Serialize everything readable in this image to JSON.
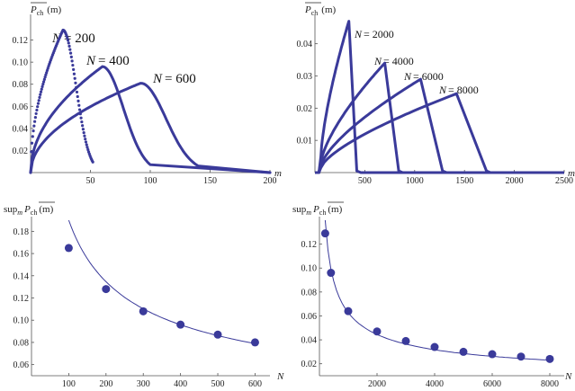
{
  "colors": {
    "series": "#3a3a9a",
    "axis": "#555555",
    "text": "#222222"
  },
  "chart_data": [
    {
      "type": "line",
      "ylabel_main": "P",
      "ylabel_sub": "ch",
      "ylabel_suffix": "(m)",
      "xlabel": "m",
      "xlim": [
        0,
        200
      ],
      "ylim": [
        0,
        0.14
      ],
      "xticks": [
        50,
        100,
        150,
        200
      ],
      "xtick_labels": [
        "50",
        "100",
        "150",
        "200"
      ],
      "yticks": [
        0.02,
        0.04,
        0.06,
        0.08,
        0.1,
        0.12
      ],
      "ytick_labels": [
        "0.02",
        "0.04",
        "0.06",
        "0.08",
        "0.10",
        "0.12"
      ],
      "annotations": [
        {
          "n_label": "N",
          "value": "= 200"
        },
        {
          "n_label": "N",
          "value": "= 400"
        },
        {
          "n_label": "N",
          "value": "= 600"
        }
      ],
      "series": [
        {
          "N": 200,
          "peak_x": 27,
          "peak_y": 0.129,
          "x_end": 52,
          "style": "points"
        },
        {
          "N": 400,
          "peak_x": 60,
          "peak_y": 0.096,
          "x_end": 100,
          "style": "line"
        },
        {
          "N": 600,
          "peak_x": 92,
          "peak_y": 0.081,
          "x_end": 140,
          "style": "line"
        }
      ]
    },
    {
      "type": "line",
      "ylabel_main": "P",
      "ylabel_sub": "ch",
      "ylabel_suffix": "(m)",
      "xlabel": "m",
      "xlim": [
        0,
        2500
      ],
      "ylim": [
        0,
        0.048
      ],
      "xticks": [
        500,
        1000,
        1500,
        2000,
        2500
      ],
      "xtick_labels": [
        "500",
        "1000",
        "1500",
        "2000",
        "2500"
      ],
      "yticks": [
        0.01,
        0.02,
        0.03,
        0.04
      ],
      "ytick_labels": [
        "0.01",
        "0.02",
        "0.03",
        "0.04"
      ],
      "annotations": [
        {
          "n_label": "N",
          "value": "= 2000"
        },
        {
          "n_label": "N",
          "value": "= 4000"
        },
        {
          "n_label": "N",
          "value": "= 6000"
        },
        {
          "n_label": "N",
          "value": "= 8000"
        }
      ],
      "series": [
        {
          "N": 2000,
          "peak_x": 340,
          "peak_y": 0.047,
          "x_end": 420,
          "start_y": 0.005
        },
        {
          "N": 4000,
          "peak_x": 700,
          "peak_y": 0.034,
          "x_end": 840,
          "start_y": 0.003
        },
        {
          "N": 6000,
          "peak_x": 1060,
          "peak_y": 0.029,
          "x_end": 1280,
          "start_y": 0.002
        },
        {
          "N": 8000,
          "peak_x": 1420,
          "peak_y": 0.0245,
          "x_end": 1720,
          "start_y": 0.0015
        }
      ]
    },
    {
      "type": "scatter",
      "ylabel_prefix": "sup",
      "ylabel_prefix_sub": "m",
      "ylabel_main": "P",
      "ylabel_sub": "ch",
      "ylabel_suffix": "(m)",
      "xlabel": "N",
      "xlim": [
        0,
        640
      ],
      "ylim": [
        0.05,
        0.19
      ],
      "xticks": [
        100,
        200,
        300,
        400,
        500,
        600
      ],
      "xtick_labels": [
        "100",
        "200",
        "300",
        "400",
        "500",
        "600"
      ],
      "yticks": [
        0.06,
        0.08,
        0.1,
        0.12,
        0.14,
        0.16,
        0.18
      ],
      "ytick_labels": [
        "0.06",
        "0.08",
        "0.10",
        "0.12",
        "0.14",
        "0.16",
        "0.18"
      ],
      "points": [
        {
          "x": 100,
          "y": 0.165
        },
        {
          "x": 200,
          "y": 0.128
        },
        {
          "x": 300,
          "y": 0.108
        },
        {
          "x": 400,
          "y": 0.096
        },
        {
          "x": 500,
          "y": 0.087
        },
        {
          "x": 600,
          "y": 0.08
        }
      ],
      "fit": {
        "x_start": 100,
        "x_end": 600,
        "y_start": 0.19,
        "y_end": 0.079
      }
    },
    {
      "type": "scatter",
      "ylabel_prefix": "sup",
      "ylabel_prefix_sub": "m",
      "ylabel_main": "P",
      "ylabel_sub": "ch",
      "ylabel_suffix": "(m)",
      "xlabel": "N",
      "xlim": [
        0,
        8500
      ],
      "ylim": [
        0.01,
        0.14
      ],
      "xticks": [
        2000,
        4000,
        6000,
        8000
      ],
      "xtick_labels": [
        "2000",
        "4000",
        "6000",
        "8000"
      ],
      "yticks": [
        0.02,
        0.04,
        0.06,
        0.08,
        0.1,
        0.12
      ],
      "ytick_labels": [
        "0.02",
        "0.04",
        "0.06",
        "0.08",
        "0.10",
        "0.12"
      ],
      "points": [
        {
          "x": 200,
          "y": 0.129
        },
        {
          "x": 400,
          "y": 0.096
        },
        {
          "x": 1000,
          "y": 0.064
        },
        {
          "x": 2000,
          "y": 0.047
        },
        {
          "x": 3000,
          "y": 0.039
        },
        {
          "x": 4000,
          "y": 0.034
        },
        {
          "x": 5000,
          "y": 0.03
        },
        {
          "x": 6000,
          "y": 0.028
        },
        {
          "x": 7000,
          "y": 0.026
        },
        {
          "x": 8000,
          "y": 0.024
        }
      ],
      "fit": {
        "x_start": 200,
        "x_end": 8000,
        "y_start": 0.14,
        "y_end": 0.023
      }
    }
  ]
}
